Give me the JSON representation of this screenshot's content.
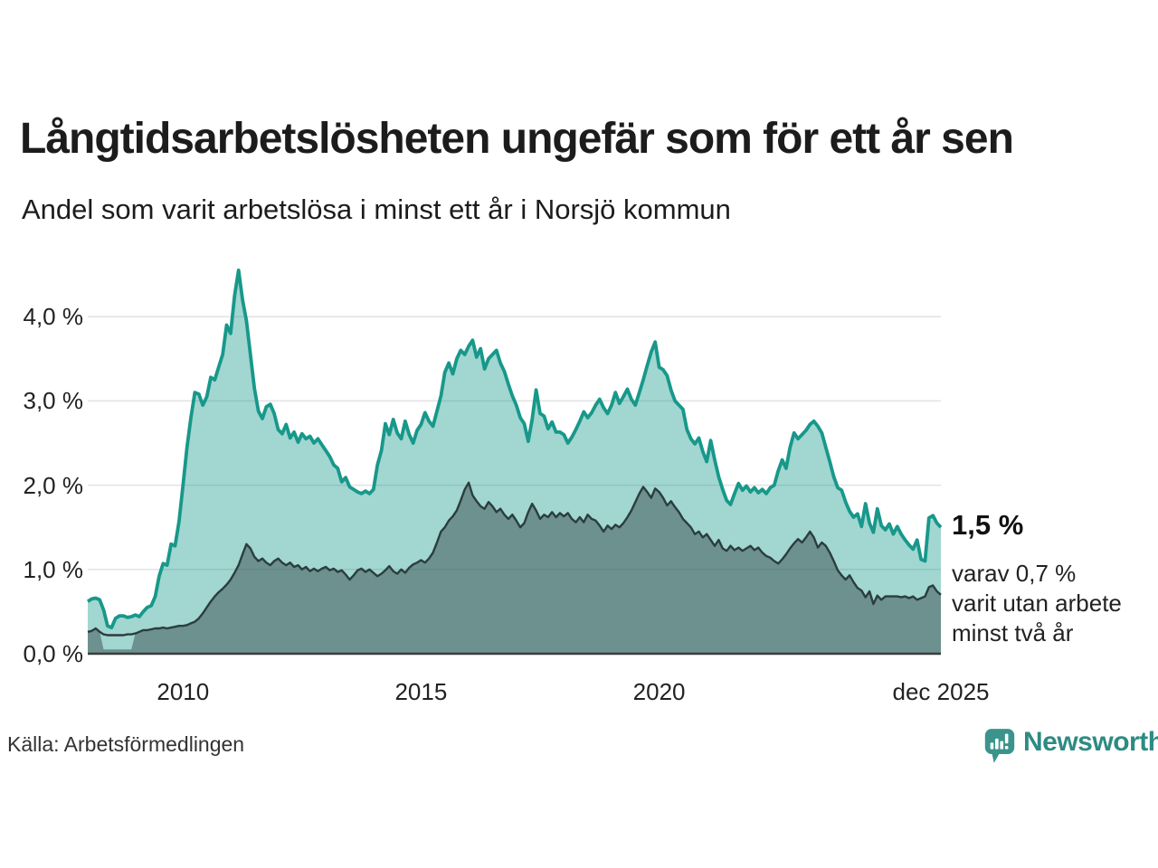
{
  "header": {
    "title": "Långtidsarbetslösheten ungefär som för ett år sen",
    "subtitle": "Andel som varit arbetslösa i minst ett år i Norsjö kommun"
  },
  "annotations": {
    "total_label": "1,5 %",
    "subset_lines": [
      "varav 0,7 %",
      "varit utan arbete",
      "minst två år"
    ]
  },
  "footer": {
    "source": "Källa: Arbetsförmedlingen",
    "brand": "Newsworthy"
  },
  "colors": {
    "teal_line": "#17988a",
    "light_fill": "#a9d6d0",
    "dark_line": "#2b3d3f",
    "dark_fill": "#6f9e99",
    "grid": "#e2e2e7",
    "axis": "#3c3c3c",
    "brand_teal": "#2d8b83"
  },
  "chart_data": {
    "type": "area",
    "title": "Långtidsarbetslösheten ungefär som för ett år sen",
    "subtitle": "Andel som varit arbetslösa i minst ett år i Norsjö kommun",
    "unit": "%",
    "x_range": [
      2008.0,
      2025.9167
    ],
    "points_per_year": 12,
    "ylim": [
      0,
      4.6
    ],
    "grid": true,
    "y_ticks": [
      {
        "label": "4,0 %",
        "value": 4
      },
      {
        "label": "3,0 %",
        "value": 3
      },
      {
        "label": "2,0 %",
        "value": 2
      },
      {
        "label": "1,0 %",
        "value": 1
      },
      {
        "label": "0,0 %",
        "value": 0
      }
    ],
    "x_ticks": [
      {
        "label": "2010",
        "t": 2010.0
      },
      {
        "label": "2015",
        "t": 2015.0
      },
      {
        "label": "2020",
        "t": 2020.0
      },
      {
        "label": "dec 2025",
        "t": 2025.9167
      }
    ],
    "series": [
      {
        "name": "minst ett år",
        "end_value_label": "1,5 %",
        "values": [
          0.62,
          0.65,
          0.66,
          0.64,
          0.52,
          0.33,
          0.31,
          0.42,
          0.45,
          0.45,
          0.43,
          0.44,
          0.46,
          0.44,
          0.5,
          0.55,
          0.57,
          0.68,
          0.92,
          1.07,
          1.05,
          1.3,
          1.28,
          1.57,
          2.0,
          2.45,
          2.8,
          3.1,
          3.08,
          2.95,
          3.05,
          3.28,
          3.25,
          3.4,
          3.55,
          3.9,
          3.8,
          4.25,
          4.55,
          4.2,
          3.95,
          3.55,
          3.15,
          2.88,
          2.79,
          2.93,
          2.96,
          2.85,
          2.66,
          2.61,
          2.72,
          2.56,
          2.63,
          2.51,
          2.61,
          2.55,
          2.58,
          2.5,
          2.55,
          2.48,
          2.41,
          2.34,
          2.24,
          2.2,
          2.04,
          2.09,
          1.98,
          1.95,
          1.92,
          1.9,
          1.93,
          1.9,
          1.95,
          2.24,
          2.41,
          2.73,
          2.6,
          2.78,
          2.62,
          2.55,
          2.76,
          2.6,
          2.5,
          2.65,
          2.72,
          2.86,
          2.76,
          2.7,
          2.88,
          3.06,
          3.34,
          3.45,
          3.32,
          3.5,
          3.6,
          3.55,
          3.65,
          3.72,
          3.52,
          3.62,
          3.38,
          3.5,
          3.55,
          3.6,
          3.45,
          3.35,
          3.2,
          3.06,
          2.95,
          2.8,
          2.73,
          2.52,
          2.78,
          3.13,
          2.85,
          2.82,
          2.67,
          2.75,
          2.63,
          2.63,
          2.6,
          2.5,
          2.57,
          2.66,
          2.76,
          2.87,
          2.8,
          2.86,
          2.95,
          3.02,
          2.92,
          2.85,
          2.95,
          3.1,
          2.97,
          3.05,
          3.14,
          3.02,
          2.95,
          3.1,
          3.25,
          3.42,
          3.58,
          3.7,
          3.4,
          3.37,
          3.3,
          3.13,
          3.0,
          2.95,
          2.9,
          2.66,
          2.55,
          2.49,
          2.56,
          2.4,
          2.28,
          2.53,
          2.3,
          2.1,
          1.95,
          1.82,
          1.77,
          1.9,
          2.02,
          1.94,
          1.99,
          1.92,
          1.97,
          1.91,
          1.95,
          1.9,
          1.97,
          2.0,
          2.17,
          2.3,
          2.2,
          2.45,
          2.62,
          2.55,
          2.6,
          2.65,
          2.72,
          2.76,
          2.7,
          2.62,
          2.45,
          2.28,
          2.1,
          1.97,
          1.94,
          1.8,
          1.69,
          1.62,
          1.66,
          1.51,
          1.78,
          1.55,
          1.44,
          1.72,
          1.52,
          1.47,
          1.54,
          1.42,
          1.51,
          1.42,
          1.35,
          1.29,
          1.24,
          1.35,
          1.12,
          1.1,
          1.61,
          1.64,
          1.55,
          1.5
        ]
      },
      {
        "name": "minst två år",
        "end_value_label": "0,7 %",
        "values": [
          0.26,
          0.27,
          0.3,
          0.26,
          0.23,
          0.22,
          0.22,
          0.22,
          0.22,
          0.22,
          0.23,
          0.23,
          0.24,
          0.26,
          0.28,
          0.28,
          0.29,
          0.3,
          0.3,
          0.31,
          0.3,
          0.31,
          0.32,
          0.33,
          0.33,
          0.34,
          0.36,
          0.38,
          0.42,
          0.48,
          0.55,
          0.62,
          0.68,
          0.73,
          0.77,
          0.82,
          0.88,
          0.96,
          1.05,
          1.18,
          1.3,
          1.25,
          1.15,
          1.1,
          1.13,
          1.08,
          1.05,
          1.1,
          1.13,
          1.08,
          1.05,
          1.08,
          1.03,
          1.05,
          1.0,
          1.03,
          0.98,
          1.01,
          0.98,
          1.01,
          1.03,
          0.99,
          1.01,
          0.97,
          0.99,
          0.94,
          0.88,
          0.93,
          0.99,
          1.01,
          0.97,
          1.0,
          0.96,
          0.92,
          0.95,
          0.99,
          1.04,
          0.98,
          0.95,
          1.0,
          0.96,
          1.02,
          1.06,
          1.08,
          1.11,
          1.08,
          1.13,
          1.2,
          1.32,
          1.45,
          1.5,
          1.58,
          1.63,
          1.7,
          1.82,
          1.95,
          2.03,
          1.88,
          1.81,
          1.75,
          1.72,
          1.8,
          1.75,
          1.68,
          1.72,
          1.65,
          1.6,
          1.65,
          1.58,
          1.5,
          1.55,
          1.68,
          1.78,
          1.7,
          1.6,
          1.65,
          1.62,
          1.68,
          1.62,
          1.67,
          1.63,
          1.67,
          1.6,
          1.56,
          1.62,
          1.56,
          1.65,
          1.6,
          1.58,
          1.52,
          1.45,
          1.52,
          1.48,
          1.53,
          1.5,
          1.55,
          1.62,
          1.7,
          1.8,
          1.9,
          1.98,
          1.92,
          1.85,
          1.96,
          1.92,
          1.85,
          1.76,
          1.81,
          1.74,
          1.68,
          1.6,
          1.55,
          1.5,
          1.42,
          1.45,
          1.38,
          1.42,
          1.35,
          1.28,
          1.35,
          1.25,
          1.22,
          1.28,
          1.23,
          1.26,
          1.22,
          1.25,
          1.28,
          1.23,
          1.26,
          1.2,
          1.16,
          1.14,
          1.1,
          1.07,
          1.12,
          1.18,
          1.25,
          1.31,
          1.36,
          1.32,
          1.38,
          1.45,
          1.38,
          1.26,
          1.32,
          1.28,
          1.2,
          1.1,
          0.99,
          0.93,
          0.88,
          0.93,
          0.85,
          0.78,
          0.75,
          0.67,
          0.74,
          0.59,
          0.69,
          0.64,
          0.68,
          0.68,
          0.68,
          0.68,
          0.67,
          0.68,
          0.66,
          0.68,
          0.64,
          0.66,
          0.68,
          0.79,
          0.81,
          0.74,
          0.7
        ],
        "fill_anomaly": {
          "start_index": 4,
          "end_index": 12,
          "fill_value": 0.05
        }
      }
    ]
  }
}
